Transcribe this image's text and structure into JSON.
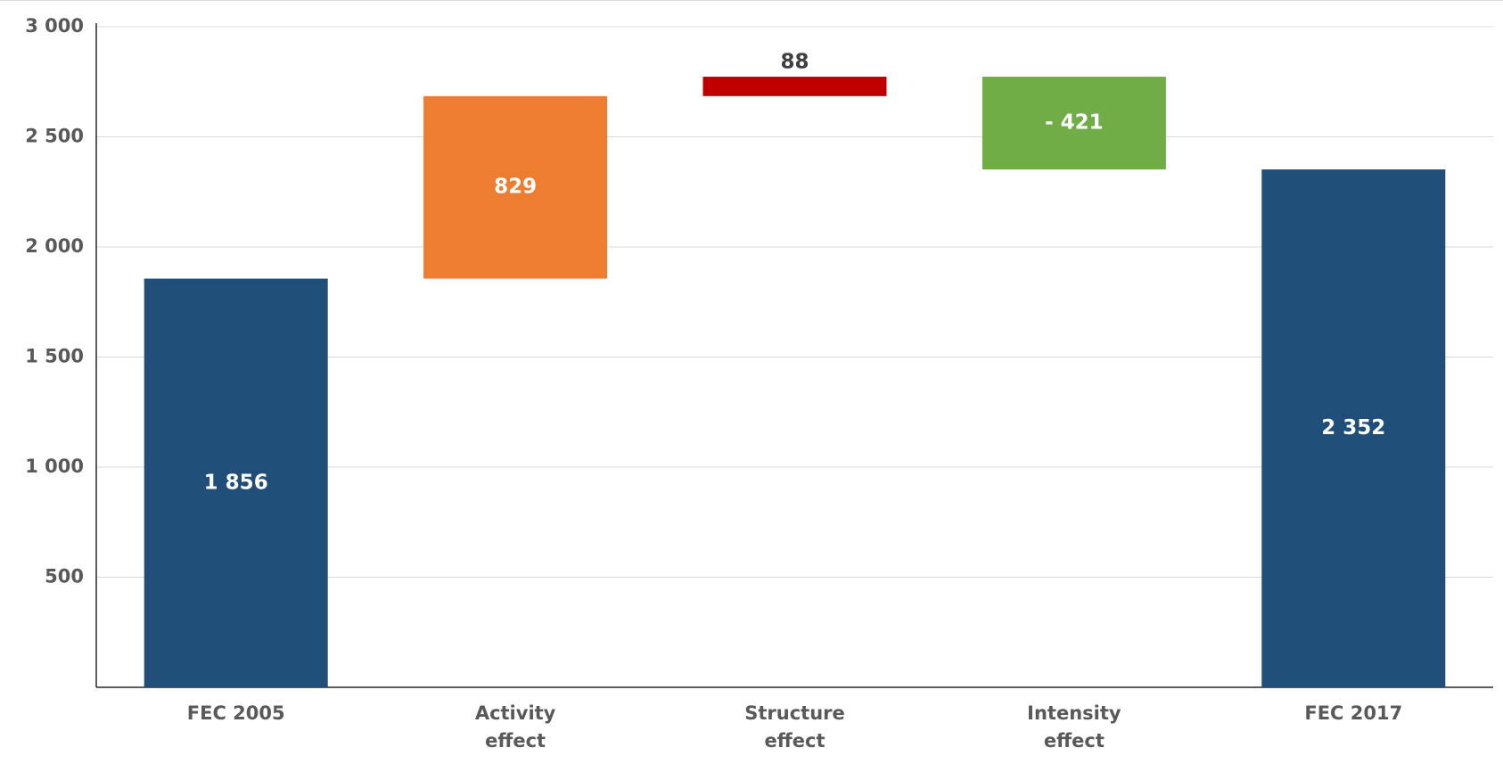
{
  "chart_data": {
    "type": "waterfall",
    "categories": [
      "FEC 2005",
      "Activity effect",
      "Structure effect",
      "Intensity effect",
      "FEC 2017"
    ],
    "values": [
      1856,
      829,
      88,
      -421,
      2352
    ],
    "value_labels": [
      "1 856",
      "829",
      "88",
      "- 421",
      "2 352"
    ],
    "measures": [
      "total",
      "relative",
      "relative",
      "relative",
      "total"
    ],
    "colors": [
      "#1f4e79",
      "#ed7d31",
      "#c00000",
      "#70ad47",
      "#1f4e79"
    ],
    "ylim": [
      0,
      3000
    ],
    "yticks": [
      500,
      {
        "value": 1000,
        "label": "1 000"
      },
      {
        "value": 1500,
        "label": "1 500"
      },
      {
        "value": 2000,
        "label": "2 000"
      },
      {
        "value": 2500,
        "label": "2 500"
      },
      {
        "value": 3000,
        "label": "3 000"
      }
    ],
    "grid": true
  }
}
